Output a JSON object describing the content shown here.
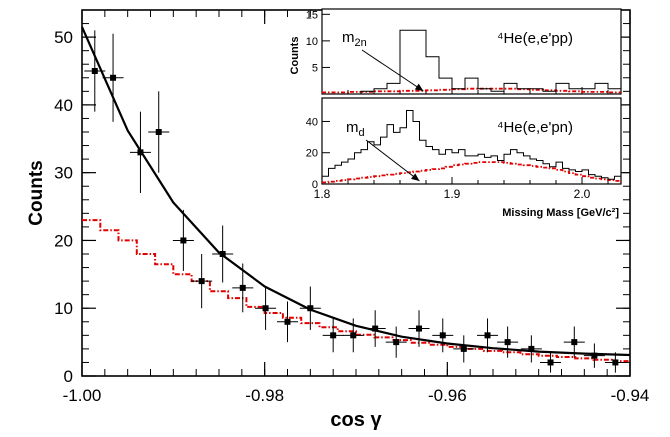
{
  "chart_data": [
    {
      "type": "scatter",
      "xlabel": "cos γ",
      "ylabel": "Counts",
      "xlim": [
        -1.0,
        -0.94
      ],
      "ylim": [
        0,
        54
      ],
      "x_ticks": [
        "-1.00",
        "-0.98",
        "-0.96",
        "-0.94"
      ],
      "y_ticks": [
        "0",
        "10",
        "20",
        "30",
        "40",
        "50"
      ],
      "grid": false,
      "series": [
        {
          "color": "#000000",
          "points": [
            {
              "x": -0.9986,
              "y": 45,
              "err": 6
            },
            {
              "x": -0.9966,
              "y": 44,
              "err": 6.5
            },
            {
              "x": -0.9936,
              "y": 33,
              "err": 6
            },
            {
              "x": -0.9916,
              "y": 36,
              "err": 6
            },
            {
              "x": -0.9889,
              "y": 20,
              "err": 4.5
            },
            {
              "x": -0.9869,
              "y": 14,
              "err": 4
            },
            {
              "x": -0.9846,
              "y": 18,
              "err": 4.2
            },
            {
              "x": -0.9824,
              "y": 13,
              "err": 3.6
            },
            {
              "x": -0.9799,
              "y": 10,
              "err": 3.2
            },
            {
              "x": -0.9775,
              "y": 8,
              "err": 3
            },
            {
              "x": -0.975,
              "y": 10,
              "err": 3.2
            },
            {
              "x": -0.9725,
              "y": 6,
              "err": 2.5
            },
            {
              "x": -0.9703,
              "y": 6,
              "err": 2.5
            },
            {
              "x": -0.9679,
              "y": 7,
              "err": 2.7
            },
            {
              "x": -0.9656,
              "y": 5,
              "err": 2.3
            },
            {
              "x": -0.9631,
              "y": 7,
              "err": 2.7
            },
            {
              "x": -0.9605,
              "y": 6,
              "err": 2.5
            },
            {
              "x": -0.9582,
              "y": 4,
              "err": 2
            },
            {
              "x": -0.9556,
              "y": 6,
              "err": 2.5
            },
            {
              "x": -0.9534,
              "y": 5,
              "err": 2.3
            },
            {
              "x": -0.9508,
              "y": 4,
              "err": 2
            },
            {
              "x": -0.9487,
              "y": 2,
              "err": 1.5
            },
            {
              "x": -0.9461,
              "y": 5,
              "err": 2.3
            },
            {
              "x": -0.9439,
              "y": 3,
              "err": 1.8
            },
            {
              "x": -0.9416,
              "y": 2,
              "err": 1.5
            }
          ]
        },
        {
          "type": "line",
          "color": "#000000",
          "function": "exponential",
          "x": [
            -1.0,
            -0.995,
            -0.99,
            -0.985,
            -0.98,
            -0.975,
            -0.97,
            -0.965,
            -0.96,
            -0.955,
            -0.95,
            -0.945,
            -0.94
          ],
          "y": [
            51.5,
            36.2,
            25.6,
            18.2,
            13.2,
            9.8,
            7.4,
            5.8,
            4.8,
            4.1,
            3.6,
            3.3,
            3.1
          ]
        },
        {
          "type": "step",
          "color": "#e00000",
          "style": "dash-dot",
          "bin_edges": [
            -1.0,
            -0.998,
            -0.996,
            -0.994,
            -0.992,
            -0.99,
            -0.988,
            -0.986,
            -0.984,
            -0.982,
            -0.98,
            -0.978,
            -0.976,
            -0.974,
            -0.972,
            -0.97,
            -0.968,
            -0.966,
            -0.964,
            -0.962,
            -0.96,
            -0.958,
            -0.956,
            -0.954,
            -0.952,
            -0.95,
            -0.948,
            -0.946,
            -0.944,
            -0.942,
            -0.94
          ],
          "values": [
            23,
            21.5,
            20,
            18,
            16.5,
            15,
            14,
            12.5,
            11.5,
            10.2,
            9.3,
            8.6,
            7.8,
            7.2,
            6.6,
            6.1,
            5.7,
            5.3,
            4.9,
            4.6,
            4.3,
            4.0,
            3.7,
            3.5,
            3.2,
            3.0,
            2.8,
            2.6,
            2.4,
            2.2
          ]
        }
      ]
    },
    {
      "type": "bar",
      "inset": "top-right",
      "ylabel": "Counts",
      "xlim": [
        1.8,
        2.04
      ],
      "ylim": [
        0,
        16
      ],
      "y_ticks": [
        "5",
        "10",
        "15"
      ],
      "label": "⁴He(e,e'pp)",
      "annotation": "m",
      "annotation_sub": "2n",
      "annotation_x": 1.878,
      "series": [
        {
          "type": "step",
          "color": "#000000",
          "bin_edges": [
            1.8,
            1.81,
            1.82,
            1.83,
            1.84,
            1.85,
            1.86,
            1.87,
            1.88,
            1.89,
            1.9,
            1.91,
            1.92,
            1.93,
            1.94,
            1.95,
            1.96,
            1.97,
            1.98,
            1.99,
            2.0,
            2.01,
            2.02,
            2.03,
            2.04
          ],
          "values": [
            0,
            0,
            0,
            0.5,
            1,
            2,
            12,
            12,
            7,
            3,
            1,
            3,
            1,
            0.5,
            2,
            1,
            1,
            0.5,
            2,
            1,
            1,
            2,
            1,
            0.5
          ]
        },
        {
          "type": "step",
          "color": "#e00000",
          "style": "dash-dot",
          "bin_edges": [
            1.8,
            1.81,
            1.82,
            1.83,
            1.84,
            1.85,
            1.86,
            1.87,
            1.88,
            1.89,
            1.9,
            1.91,
            1.92,
            1.93,
            1.94,
            1.95,
            1.96,
            1.97,
            1.98,
            1.99,
            2.0,
            2.01,
            2.02,
            2.03,
            2.04
          ],
          "values": [
            0.3,
            0.3,
            0.4,
            0.4,
            0.5,
            0.5,
            0.6,
            0.6,
            0.7,
            0.8,
            0.9,
            1.0,
            1.0,
            1.0,
            1.0,
            0.9,
            0.8,
            0.7,
            0.6,
            0.5,
            0.4,
            0.4,
            0.3,
            0.3
          ]
        }
      ]
    },
    {
      "type": "bar",
      "inset": "top-right",
      "ylabel": "Counts",
      "xlabel": "Missing Mass [GeV/c²]",
      "xlim": [
        1.8,
        2.04
      ],
      "ylim": [
        0,
        55
      ],
      "x_ticks": [
        "1.8",
        "1.9",
        "2.0"
      ],
      "y_ticks": [
        "0",
        "20",
        "40"
      ],
      "label": "⁴He(e,e'pn)",
      "annotation": "m",
      "annotation_sub": "d",
      "annotation_x": 1.875,
      "series": [
        {
          "type": "step",
          "color": "#000000",
          "bin_edges": [
            1.8,
            1.805,
            1.81,
            1.815,
            1.82,
            1.825,
            1.83,
            1.835,
            1.84,
            1.845,
            1.85,
            1.855,
            1.86,
            1.865,
            1.87,
            1.875,
            1.88,
            1.885,
            1.89,
            1.895,
            1.9,
            1.905,
            1.91,
            1.915,
            1.92,
            1.925,
            1.93,
            1.935,
            1.94,
            1.945,
            1.95,
            1.955,
            1.96,
            1.965,
            1.97,
            1.975,
            1.98,
            1.985,
            1.99,
            1.995,
            2.0,
            2.005,
            2.01,
            2.015,
            2.02,
            2.025,
            2.03,
            2.035,
            2.04
          ],
          "values": [
            5,
            10,
            12,
            14,
            16,
            20,
            22,
            27,
            25,
            30,
            38,
            33,
            36,
            47,
            40,
            28,
            24,
            22,
            19,
            22,
            20,
            22,
            18,
            18,
            19,
            17,
            18,
            15,
            19,
            22,
            20,
            18,
            16,
            15,
            13,
            11,
            14,
            10,
            9,
            8,
            9,
            6,
            5,
            4,
            3,
            5,
            2,
            3
          ]
        },
        {
          "type": "step",
          "color": "#e00000",
          "style": "dash-dot",
          "bin_edges": [
            1.8,
            1.805,
            1.81,
            1.815,
            1.82,
            1.825,
            1.83,
            1.835,
            1.84,
            1.845,
            1.85,
            1.855,
            1.86,
            1.865,
            1.87,
            1.875,
            1.88,
            1.885,
            1.89,
            1.895,
            1.9,
            1.905,
            1.91,
            1.915,
            1.92,
            1.925,
            1.93,
            1.935,
            1.94,
            1.945,
            1.95,
            1.955,
            1.96,
            1.965,
            1.97,
            1.975,
            1.98,
            1.985,
            1.99,
            1.995,
            2.0,
            2.005,
            2.01,
            2.015,
            2.02,
            2.025,
            2.03,
            2.035,
            2.04
          ],
          "values": [
            1,
            1.5,
            2,
            2.5,
            3,
            3.5,
            4,
            4.5,
            5,
            5.5,
            6,
            6.5,
            7,
            7.5,
            8,
            8.5,
            9,
            9.5,
            10,
            11,
            12,
            12.5,
            13,
            13.5,
            14,
            14,
            14,
            14,
            13.5,
            13,
            12.5,
            12,
            11.5,
            11,
            10.5,
            10,
            9,
            8,
            7,
            6,
            5,
            4,
            3.5,
            3,
            2.5,
            2,
            1.5,
            1
          ]
        }
      ]
    }
  ]
}
